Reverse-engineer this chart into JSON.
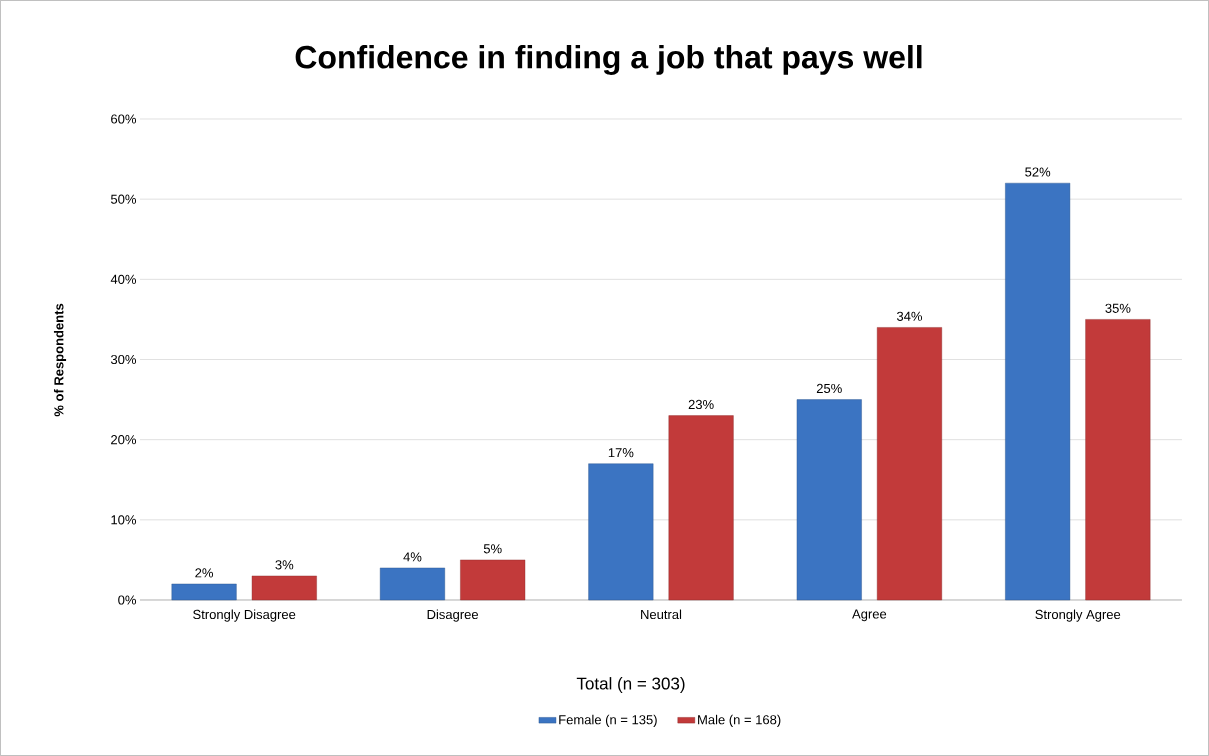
{
  "chart_data": {
    "type": "bar",
    "title": "Confidence in finding a job that pays well",
    "xlabel": "Total (n = 303)",
    "ylabel": "% of Respondents",
    "categories": [
      "Strongly Disagree",
      "Disagree",
      "Neutral",
      "Agree",
      "Strongly Agree"
    ],
    "series": [
      {
        "name": "Female (n = 135)",
        "color": "#3b74c2",
        "values": [
          2,
          4,
          17,
          25,
          52
        ],
        "value_labels": [
          "2%",
          "4%",
          "17%",
          "25%",
          "52%"
        ]
      },
      {
        "name": "Male (n = 168)",
        "color": "#c23a3a",
        "values": [
          3,
          5,
          23,
          34,
          35
        ],
        "value_labels": [
          "3%",
          "5%",
          "23%",
          "34%",
          "35%"
        ]
      }
    ],
    "ylim": [
      0,
      60
    ],
    "yticks": [
      {
        "value": 0,
        "label": "0%"
      },
      {
        "value": 10,
        "label": "10%"
      },
      {
        "value": 20,
        "label": "20%"
      },
      {
        "value": 30,
        "label": "30%"
      },
      {
        "value": 40,
        "label": "40%"
      },
      {
        "value": 50,
        "label": "50%"
      },
      {
        "value": 60,
        "label": "60%"
      }
    ],
    "grid": "y",
    "legend": "bottom"
  }
}
